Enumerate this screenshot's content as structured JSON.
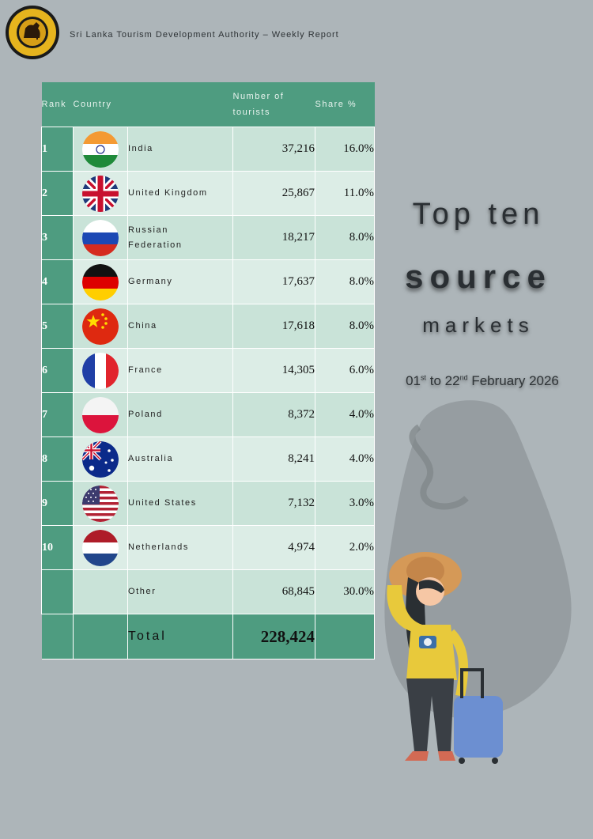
{
  "header": {
    "title": "Sri Lanka Tourism Development Authority – Weekly Report"
  },
  "table": {
    "headers": {
      "rank": "Rank",
      "country": "Country",
      "number_line1": "Number of",
      "number_line2": "tourists",
      "share": "Share %"
    },
    "rows": [
      {
        "rank": "1",
        "flag": "india-flag",
        "country": "India",
        "number": "37,216",
        "share": "16.0%"
      },
      {
        "rank": "2",
        "flag": "uk-flag",
        "country": "United Kingdom",
        "number": "25,867",
        "share": "11.0%"
      },
      {
        "rank": "3",
        "flag": "russia-flag",
        "country_line1": "Russian",
        "country_line2": "Federation",
        "number": "18,217",
        "share": "8.0%"
      },
      {
        "rank": "4",
        "flag": "germany-flag",
        "country": "Germany",
        "number": "17,637",
        "share": "8.0%"
      },
      {
        "rank": "5",
        "flag": "china-flag",
        "country": "China",
        "number": "17,618",
        "share": "8.0%"
      },
      {
        "rank": "6",
        "flag": "france-flag",
        "country": "France",
        "number": "14,305",
        "share": "6.0%"
      },
      {
        "rank": "7",
        "flag": "poland-flag",
        "country": "Poland",
        "number": "8,372",
        "share": "4.0%"
      },
      {
        "rank": "8",
        "flag": "australia-flag",
        "country": "Australia",
        "number": "8,241",
        "share": "4.0%"
      },
      {
        "rank": "9",
        "flag": "usa-flag",
        "country": "United States",
        "number": "7,132",
        "share": "3.0%"
      },
      {
        "rank": "10",
        "flag": "netherlands-flag",
        "country": "Netherlands",
        "number": "4,974",
        "share": "2.0%"
      }
    ],
    "other": {
      "country": "Other",
      "number": "68,845",
      "share": "30.0%"
    },
    "total": {
      "label": "Total",
      "number": "228,424"
    }
  },
  "side": {
    "line1": "Top ten",
    "line2": "source",
    "line3": "markets",
    "date_start": "01",
    "date_start_suffix": "st",
    "date_to": " to 22",
    "date_end_suffix": "nd",
    "date_rest": " February 2026"
  },
  "colors": {
    "background": "#adb5b9",
    "table_header": "#4e9c80",
    "row_light": "#dcede6",
    "row_mid": "#c9e3d8"
  }
}
